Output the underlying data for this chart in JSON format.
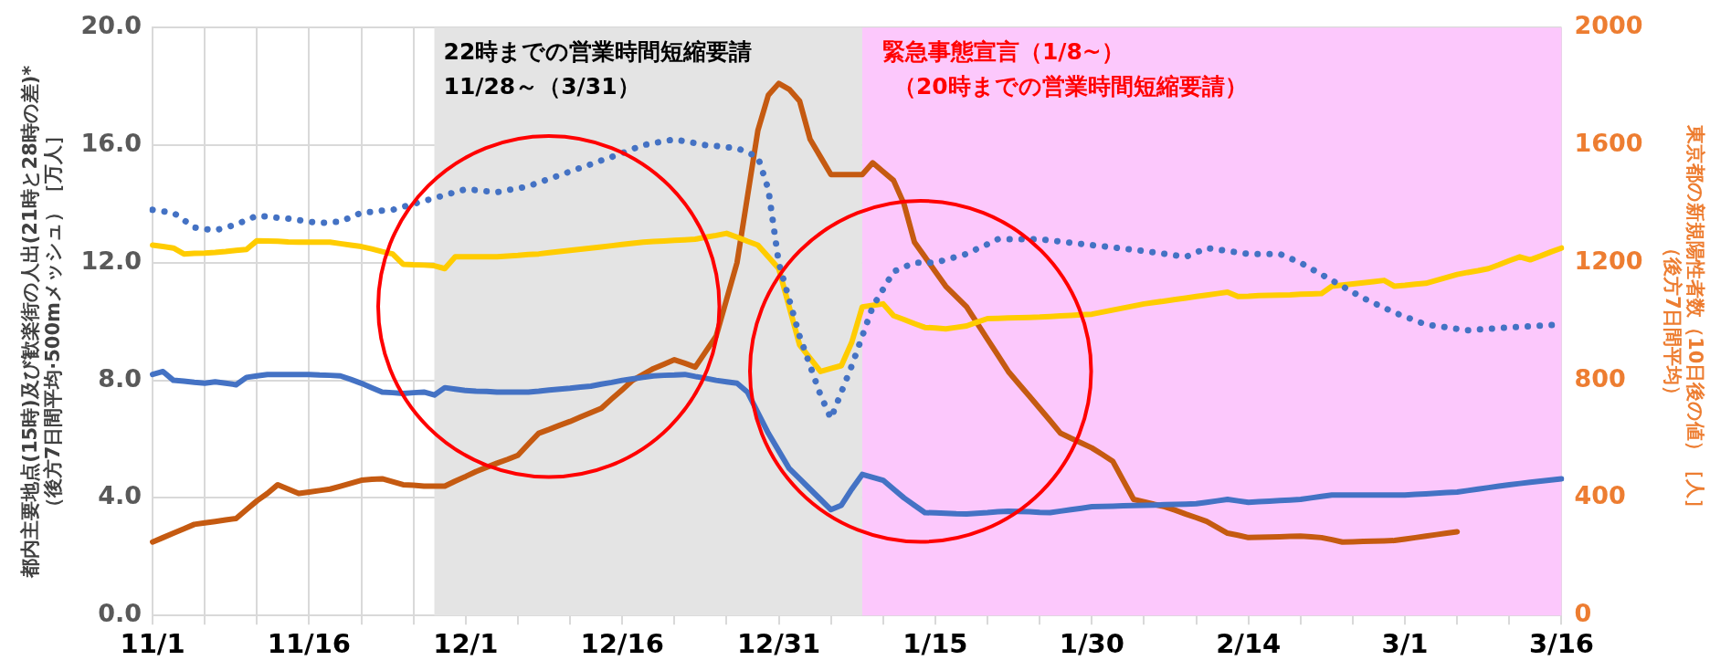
{
  "chart_data": {
    "type": "line",
    "ylabel": "都内主要地点(15時)及び歓楽街の人出(21時と28時の差)*（後方7日間平均·500mメッシュ）［万人］",
    "y2label": "東京都の新規陽性者数（10日後の値）［人］（後方7日間平均）",
    "categories": [
      "11/1",
      null,
      null,
      null,
      null,
      null,
      null,
      null,
      null,
      null,
      null,
      null,
      null,
      null,
      null,
      "11/16",
      null,
      null,
      null,
      null,
      null,
      null,
      null,
      null,
      null,
      null,
      null,
      null,
      null,
      null,
      "12/1",
      null,
      null,
      null,
      null,
      null,
      null,
      null,
      null,
      null,
      null,
      null,
      null,
      null,
      null,
      "12/16",
      null,
      null,
      null,
      null,
      null,
      null,
      null,
      null,
      null,
      null,
      null,
      null,
      null,
      null,
      "12/31",
      null,
      null,
      null,
      null,
      null,
      null,
      null,
      null,
      null,
      null,
      null,
      null,
      null,
      null,
      "1/15",
      null,
      null,
      null,
      null,
      null,
      null,
      null,
      null,
      null,
      null,
      null,
      null,
      null,
      null,
      "1/30",
      null,
      null,
      null,
      null,
      null,
      null,
      null,
      null,
      null,
      null,
      null,
      null,
      null,
      null,
      "2/14",
      null,
      null,
      null,
      null,
      null,
      null,
      null,
      null,
      null,
      null,
      null,
      null,
      null,
      null,
      "3/1",
      null,
      null,
      null,
      null,
      null,
      null,
      null,
      null,
      null,
      null,
      null,
      null,
      null,
      null,
      "3/16"
    ],
    "ylim": [
      0,
      20
    ],
    "yticks": [
      {
        "value": 0,
        "label": "0.0"
      },
      {
        "value": 4,
        "label": "4.0"
      },
      {
        "value": 8,
        "label": "8.0"
      },
      {
        "value": 12,
        "label": "12.0"
      },
      {
        "value": 16,
        "label": "16.0"
      },
      {
        "value": 20,
        "label": "20.0"
      }
    ],
    "y2lim": [
      0,
      2000
    ],
    "y2ticks": [
      0,
      400,
      800,
      1200,
      1600,
      2000
    ],
    "grid": true,
    "legend": false,
    "marker": "none",
    "annotations": [
      "22時までの営業時間短縮要請11/28～（3/31）",
      "緊急事態宣言（1/8~）（20時までの営業時間短縮要請）"
    ],
    "series": [
      {
        "color": "#4472c4",
        "line_style": "solid",
        "values": [
          8.2,
          8.3,
          8.0,
          7.97,
          7.93,
          7.9,
          7.95,
          7.9,
          7.85,
          8.1,
          8.15,
          8.2,
          8.2,
          8.2,
          8.2,
          8.2,
          8.18,
          8.17,
          8.15,
          8.03,
          7.9,
          7.75,
          7.6,
          7.58,
          7.55,
          7.58,
          7.6,
          7.5,
          7.75,
          7.7,
          7.65,
          7.63,
          7.62,
          7.6,
          7.6,
          7.6,
          7.6,
          7.63,
          7.67,
          7.7,
          7.73,
          7.77,
          7.8,
          7.87,
          7.93,
          8.0,
          8.05,
          8.1,
          8.15,
          8.17,
          8.18,
          8.2,
          8.13,
          8.07,
          8.0,
          7.95,
          7.9,
          7.6,
          6.9,
          6.2,
          5.6,
          5.0,
          4.65,
          4.3,
          3.95,
          3.6,
          3.75,
          4.3,
          4.8,
          4.7,
          4.6,
          4.3,
          4.0,
          3.75,
          3.5,
          3.49,
          3.48,
          3.46,
          3.45,
          3.48,
          3.5,
          3.53,
          3.55,
          3.54,
          3.53,
          3.51,
          3.5,
          3.55,
          3.6,
          3.65,
          3.7,
          3.71,
          3.72,
          3.73,
          3.74,
          3.75,
          3.76,
          3.77,
          3.78,
          3.79,
          3.8,
          3.85,
          3.9,
          3.95,
          3.9,
          3.85,
          3.87,
          3.89,
          3.91,
          3.93,
          3.95,
          4.0,
          4.05,
          4.1,
          4.1,
          4.1,
          4.1,
          4.1,
          4.1,
          4.1,
          4.1,
          4.12,
          4.14,
          4.16,
          4.18,
          4.2,
          4.25,
          4.3,
          4.35,
          4.4,
          4.45,
          4.49,
          4.53,
          4.57,
          4.61,
          4.65
        ]
      },
      {
        "color": "#4472c4",
        "line_style": "dotted",
        "values": [
          13.8,
          13.75,
          13.7,
          13.45,
          13.2,
          13.15,
          13.1,
          13.2,
          13.3,
          13.45,
          13.6,
          13.57,
          13.53,
          13.5,
          13.45,
          13.4,
          13.35,
          13.38,
          13.4,
          13.55,
          13.7,
          13.73,
          13.77,
          13.8,
          13.9,
          14.0,
          14.1,
          14.2,
          14.3,
          14.4,
          14.5,
          14.47,
          14.43,
          14.4,
          14.47,
          14.53,
          14.6,
          14.73,
          14.85,
          14.98,
          15.1,
          15.23,
          15.35,
          15.48,
          15.6,
          15.73,
          15.87,
          16.0,
          16.07,
          16.13,
          16.2,
          16.13,
          16.07,
          16.0,
          15.97,
          15.93,
          15.9,
          15.75,
          15.6,
          14.5,
          12.0,
          10.75,
          9.5,
          8.5,
          7.5,
          6.7,
          7.6,
          8.5,
          9.5,
          10.5,
          11.1,
          11.7,
          11.85,
          12.0,
          12.0,
          12.0,
          12.1,
          12.2,
          12.3,
          12.47,
          12.63,
          12.8,
          12.8,
          12.8,
          12.8,
          12.8,
          12.76,
          12.72,
          12.68,
          12.64,
          12.6,
          12.56,
          12.52,
          12.48,
          12.44,
          12.4,
          12.35,
          12.3,
          12.25,
          12.2,
          12.35,
          12.5,
          12.45,
          12.4,
          12.35,
          12.3,
          12.3,
          12.3,
          12.3,
          12.15,
          12.0,
          11.8,
          11.6,
          11.4,
          11.2,
          11.0,
          10.8,
          10.63,
          10.47,
          10.3,
          10.17,
          10.03,
          9.9,
          9.85,
          9.8,
          9.75,
          9.7,
          9.73,
          9.75,
          9.78,
          9.8,
          9.82,
          9.84,
          9.86,
          9.88,
          9.9
        ]
      },
      {
        "color": "#ffcc00",
        "line_style": "solid",
        "values": [
          12.6,
          12.55,
          12.5,
          12.3,
          12.32,
          12.33,
          12.35,
          12.38,
          12.42,
          12.45,
          12.75,
          12.74,
          12.73,
          12.71,
          12.7,
          12.7,
          12.7,
          12.7,
          12.65,
          12.6,
          12.55,
          12.47,
          12.38,
          12.3,
          11.95,
          11.93,
          11.92,
          11.9,
          11.8,
          12.2,
          12.2,
          12.2,
          12.2,
          12.2,
          12.23,
          12.25,
          12.28,
          12.3,
          12.34,
          12.38,
          12.42,
          12.46,
          12.5,
          12.54,
          12.58,
          12.62,
          12.66,
          12.7,
          12.72,
          12.74,
          12.76,
          12.78,
          12.8,
          12.87,
          12.93,
          13.0,
          12.87,
          12.73,
          12.6,
          12.2,
          11.8,
          10.5,
          9.2,
          8.75,
          8.3,
          8.4,
          8.5,
          9.3,
          10.5,
          10.55,
          10.6,
          10.2,
          10.07,
          9.93,
          9.8,
          9.78,
          9.75,
          9.8,
          9.85,
          9.98,
          10.1,
          10.11,
          10.12,
          10.13,
          10.14,
          10.15,
          10.17,
          10.19,
          10.21,
          10.23,
          10.25,
          10.32,
          10.39,
          10.46,
          10.53,
          10.6,
          10.65,
          10.7,
          10.75,
          10.8,
          10.85,
          10.9,
          10.95,
          11.0,
          10.85,
          10.86,
          10.88,
          10.89,
          10.9,
          10.91,
          10.93,
          10.94,
          10.95,
          11.2,
          11.24,
          11.28,
          11.32,
          11.36,
          11.4,
          11.2,
          11.23,
          11.27,
          11.3,
          11.4,
          11.5,
          11.6,
          11.67,
          11.73,
          11.8,
          11.93,
          12.07,
          12.2,
          12.1,
          12.23,
          12.37,
          12.5
        ]
      },
      {
        "color": "#c55a11",
        "line_style": "solid",
        "axis": "y2",
        "values": [
          250,
          265,
          280,
          295,
          310,
          315,
          320,
          325,
          330,
          360,
          390,
          415,
          445,
          430,
          415,
          420,
          425,
          430,
          440,
          450,
          460,
          463,
          465,
          455,
          445,
          443,
          440,
          440,
          440,
          457,
          473,
          490,
          504,
          518,
          531,
          545,
          583,
          620,
          633,
          647,
          660,
          675,
          690,
          705,
          737,
          768,
          800,
          820,
          840,
          855,
          870,
          858,
          845,
          898,
          950,
          1075,
          1200,
          1425,
          1650,
          1770,
          1810,
          1790,
          1750,
          1620,
          1560,
          1500,
          1500,
          1500,
          1500,
          1540,
          1510,
          1480,
          1400,
          1270,
          1220,
          1170,
          1120,
          1085,
          1050,
          995,
          940,
          885,
          830,
          788,
          747,
          705,
          663,
          620,
          603,
          587,
          570,
          548,
          525,
          460,
          395,
          387,
          378,
          370,
          358,
          345,
          333,
          320,
          300,
          280,
          273,
          265,
          266,
          267,
          268,
          269,
          270,
          268,
          265,
          258,
          250,
          251,
          252,
          253,
          254,
          255,
          260,
          265,
          270,
          275,
          280,
          285,
          null,
          null,
          null,
          null,
          null,
          null,
          null,
          null,
          null,
          null
        ]
      }
    ]
  }
}
